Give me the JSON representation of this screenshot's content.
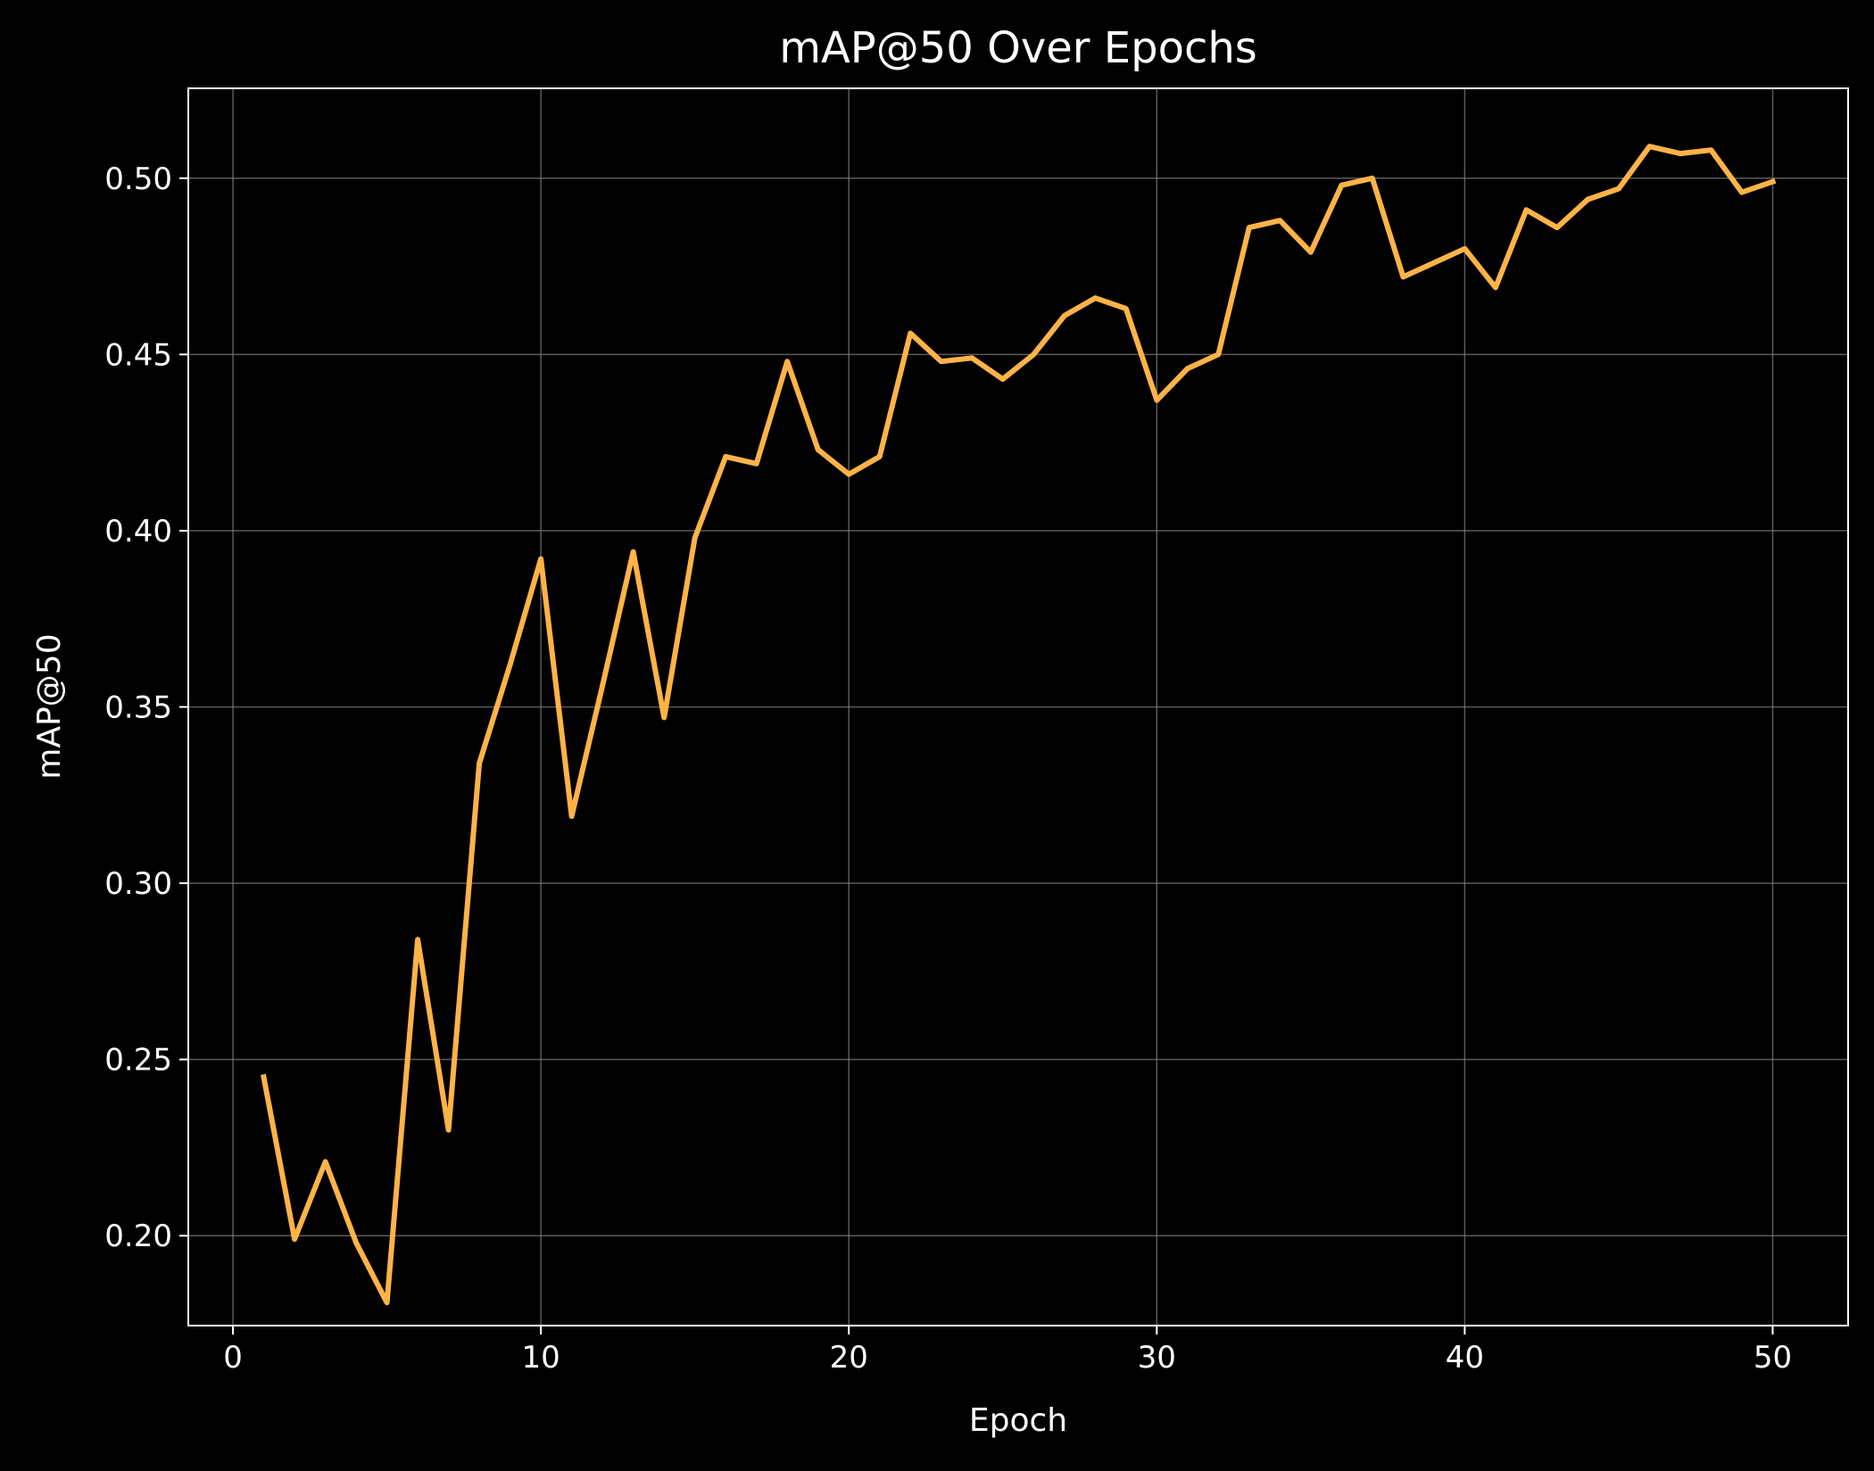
{
  "chart_data": {
    "type": "line",
    "title": "mAP@50 Over Epochs",
    "xlabel": "Epoch",
    "ylabel": "mAP@50",
    "xlim": [
      -1.45,
      52.45
    ],
    "ylim": [
      0.1745,
      0.5255
    ],
    "xticks": [
      0,
      10,
      20,
      30,
      40,
      50
    ],
    "xtick_labels": [
      "0",
      "10",
      "20",
      "30",
      "40",
      "50"
    ],
    "yticks": [
      0.2,
      0.25,
      0.3,
      0.35,
      0.4,
      0.45,
      0.5
    ],
    "ytick_labels": [
      "0.20",
      "0.25",
      "0.30",
      "0.35",
      "0.40",
      "0.45",
      "0.50"
    ],
    "grid": true,
    "background": "#000000",
    "axis_color": "#ffffff",
    "grid_color": "#808080",
    "series": [
      {
        "color": "#ffb347",
        "x": [
          1,
          2,
          3,
          4,
          5,
          6,
          7,
          8,
          9,
          10,
          11,
          12,
          13,
          14,
          15,
          16,
          17,
          18,
          19,
          20,
          21,
          22,
          23,
          24,
          25,
          26,
          27,
          28,
          29,
          30,
          31,
          32,
          33,
          34,
          35,
          36,
          37,
          38,
          39,
          40,
          41,
          42,
          43,
          44,
          45,
          46,
          47,
          48,
          49,
          50
        ],
        "y": [
          0.245,
          0.199,
          0.221,
          0.198,
          0.181,
          0.284,
          0.23,
          0.334,
          0.362,
          0.392,
          0.319,
          0.356,
          0.394,
          0.347,
          0.398,
          0.421,
          0.419,
          0.448,
          0.423,
          0.416,
          0.421,
          0.456,
          0.448,
          0.449,
          0.443,
          0.45,
          0.461,
          0.466,
          0.463,
          0.437,
          0.446,
          0.45,
          0.486,
          0.488,
          0.479,
          0.498,
          0.5,
          0.472,
          0.476,
          0.48,
          0.469,
          0.491,
          0.486,
          0.494,
          0.497,
          0.509,
          0.507,
          0.508,
          0.496,
          0.499
        ]
      }
    ]
  }
}
